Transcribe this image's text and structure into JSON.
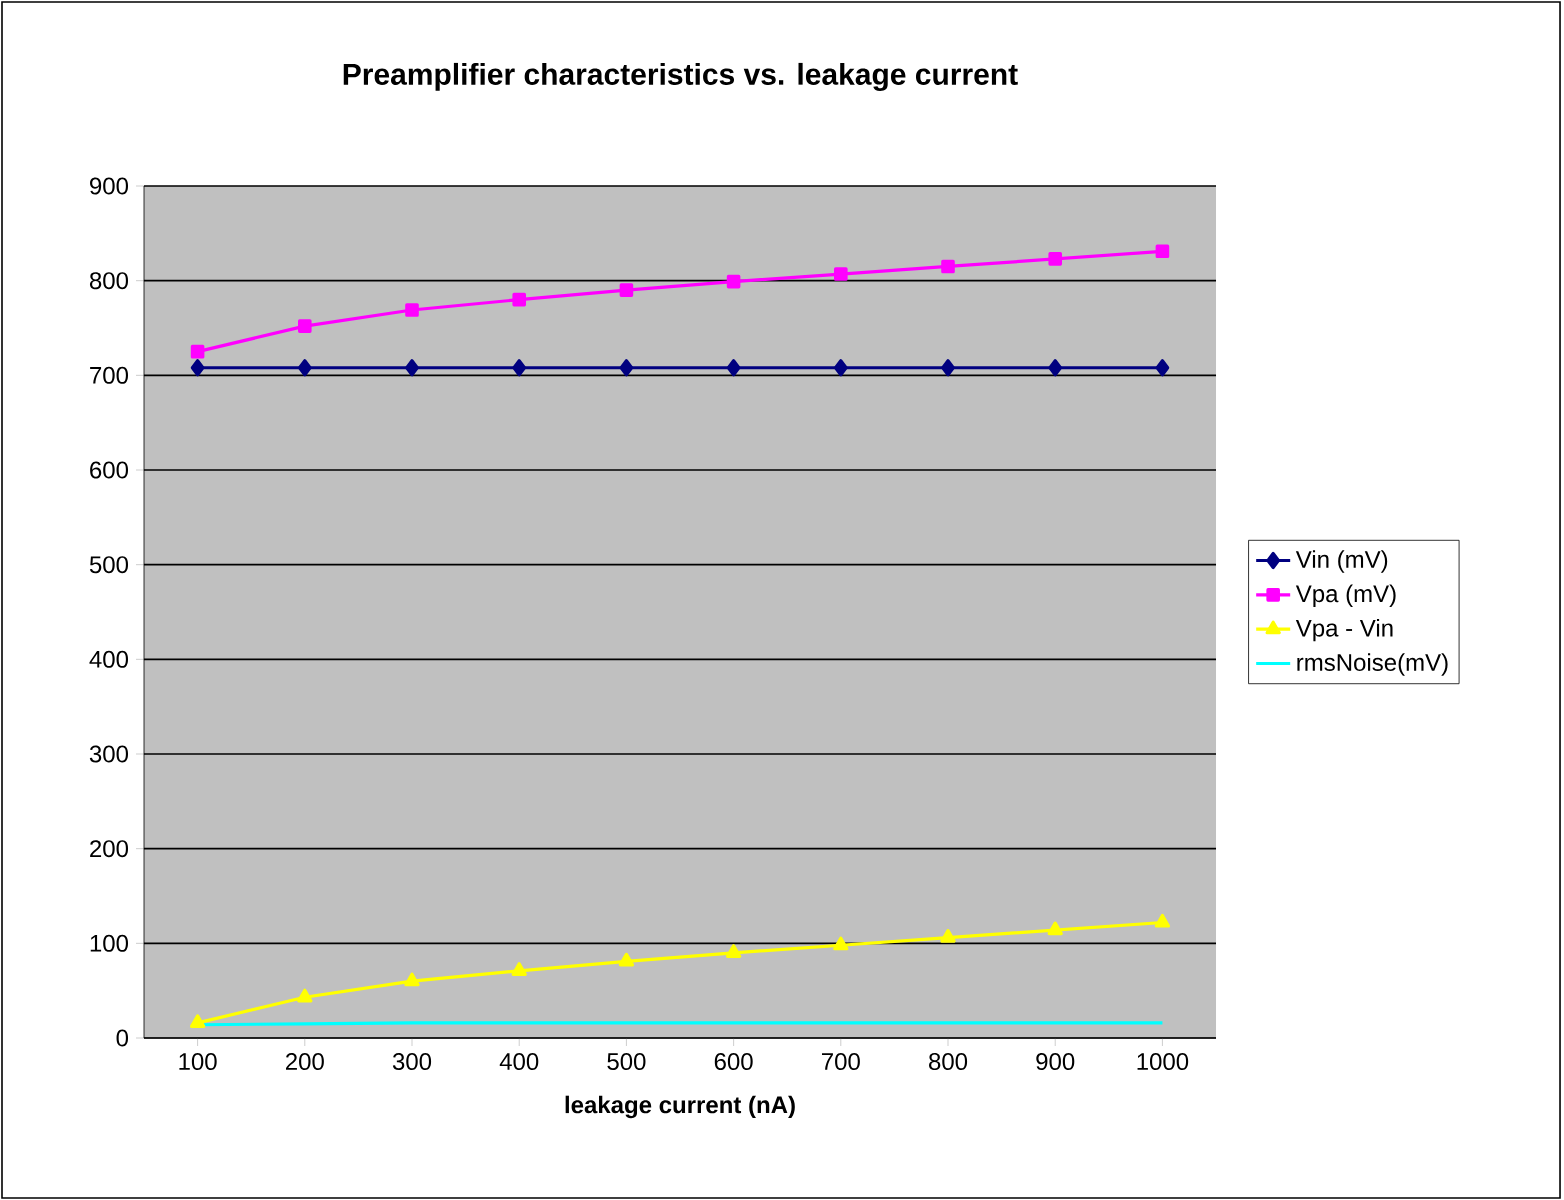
{
  "chart_data": {
    "type": "line",
    "title": "Preamplifier characteristics vs. leakage current",
    "xlabel": "leakage current (nA)",
    "categories": [
      "100",
      "200",
      "300",
      "400",
      "500",
      "600",
      "700",
      "800",
      "900",
      "1000"
    ],
    "series": [
      {
        "name": "Vin (mV)",
        "color": "#000080",
        "marker": "diamond",
        "values": [
          708,
          708,
          708,
          708,
          708,
          708,
          708,
          708,
          708,
          708
        ]
      },
      {
        "name": "Vpa (mV)",
        "color": "#ff00ff",
        "marker": "square",
        "values": [
          725,
          752,
          769,
          780,
          790,
          799,
          807,
          815,
          823,
          831
        ]
      },
      {
        "name": "Vpa - Vin",
        "color": "#ffff00",
        "marker": "triangle",
        "values": [
          16,
          43,
          60,
          71,
          81,
          90,
          98,
          106,
          114,
          122
        ]
      },
      {
        "name": "rmsNoise(mV)",
        "color": "#00ffff",
        "marker": "none",
        "values": [
          14,
          15,
          16,
          16,
          16,
          16,
          16,
          16,
          16,
          16
        ]
      }
    ],
    "ylim": [
      0,
      900
    ],
    "yticks": [
      0,
      100,
      200,
      300,
      400,
      500,
      600,
      700,
      800,
      900
    ],
    "grid": "y",
    "legend": "right"
  }
}
